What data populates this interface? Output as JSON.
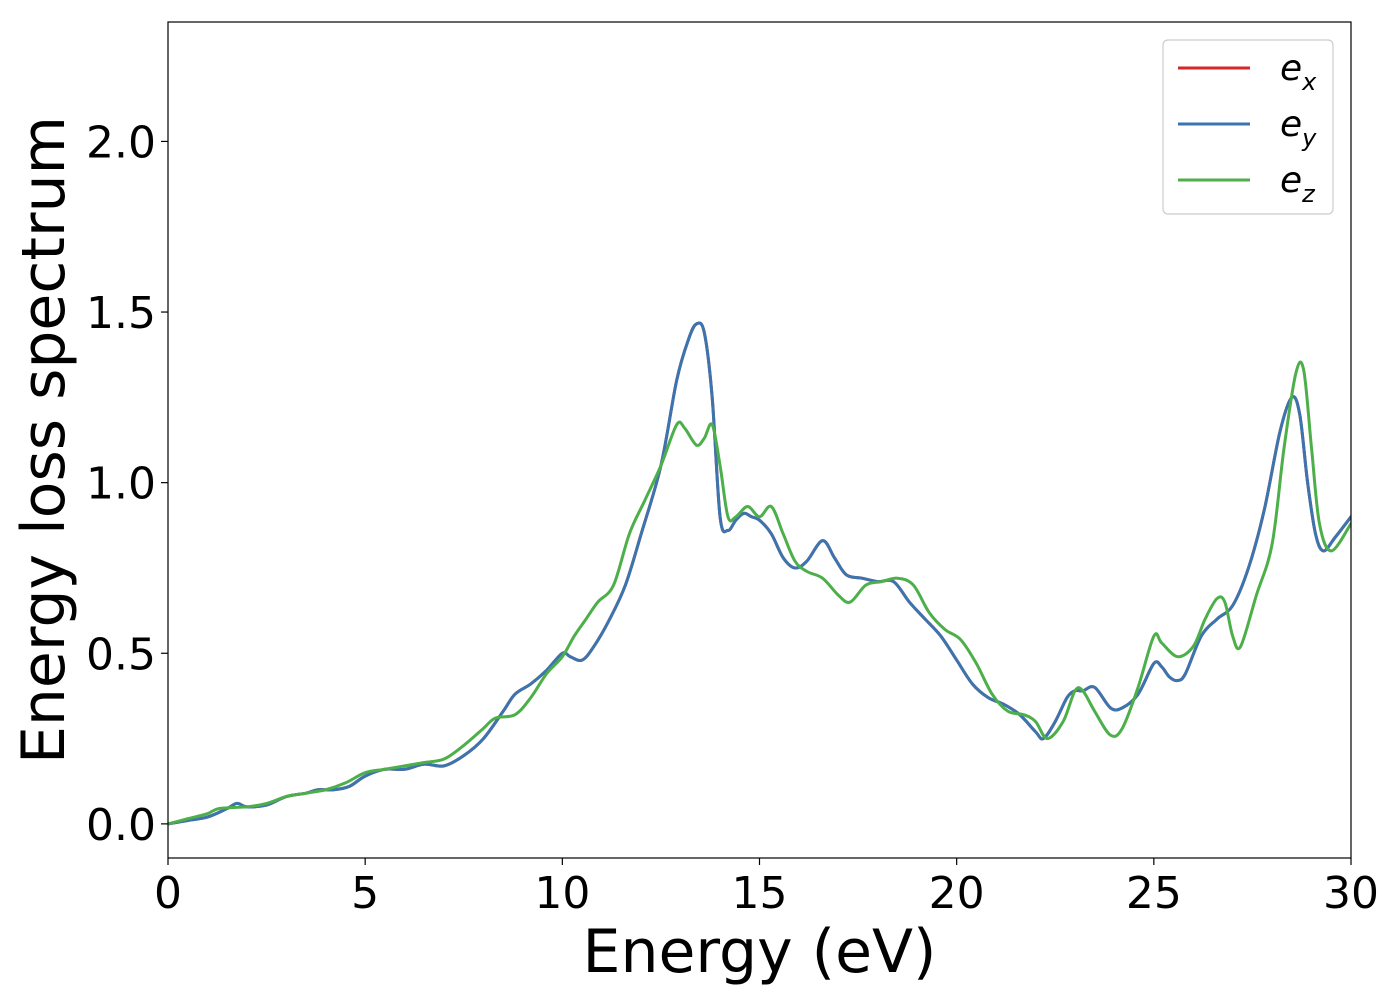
{
  "chart_data": {
    "type": "line",
    "xlabel": "Energy (eV)",
    "ylabel": "Energy loss spectrum",
    "xlim": [
      0,
      30
    ],
    "ylim": [
      -0.1,
      2.35
    ],
    "xticks": [
      0,
      5,
      10,
      15,
      20,
      25,
      30
    ],
    "xtick_labels": [
      "0",
      "5",
      "10",
      "15",
      "20",
      "25",
      "30"
    ],
    "yticks": [
      0.0,
      0.5,
      1.0,
      1.5,
      2.0
    ],
    "ytick_labels": [
      "0.0",
      "0.5",
      "1.0",
      "1.5",
      "2.0"
    ],
    "grid": false,
    "legend_position": "top-right",
    "series": [
      {
        "name": "e_x",
        "legend_base": "e",
        "legend_sub": "x",
        "color": "#d62728",
        "x": [
          0,
          0.5,
          1,
          1.5,
          1.75,
          2,
          2.5,
          3,
          3.5,
          3.8,
          4.2,
          4.6,
          5,
          5.5,
          6,
          6.5,
          7,
          7.5,
          8,
          8.5,
          8.8,
          9.2,
          9.6,
          10,
          10.2,
          10.5,
          10.8,
          11.2,
          11.6,
          12,
          12.5,
          12.9,
          13.2,
          13.4,
          13.6,
          13.8,
          14,
          14.2,
          14.4,
          14.6,
          14.8,
          15,
          15.3,
          15.6,
          15.9,
          16.2,
          16.6,
          16.9,
          17.2,
          17.6,
          18,
          18.4,
          18.8,
          19.2,
          19.6,
          20,
          20.4,
          20.8,
          21.2,
          21.6,
          22,
          22.2,
          22.5,
          22.8,
          23,
          23.2,
          23.5,
          23.9,
          24.2,
          24.6,
          25,
          25.2,
          25.4,
          25.6,
          25.8,
          26.2,
          26.6,
          27,
          27.4,
          27.8,
          28.2,
          28.5,
          28.7,
          28.9,
          29.1,
          29.3,
          29.6,
          30
        ],
        "values": [
          0.0,
          0.01,
          0.02,
          0.045,
          0.06,
          0.05,
          0.055,
          0.08,
          0.09,
          0.1,
          0.1,
          0.11,
          0.14,
          0.16,
          0.16,
          0.175,
          0.17,
          0.2,
          0.25,
          0.33,
          0.38,
          0.41,
          0.45,
          0.5,
          0.49,
          0.48,
          0.52,
          0.6,
          0.7,
          0.85,
          1.05,
          1.3,
          1.42,
          1.465,
          1.44,
          1.25,
          0.9,
          0.86,
          0.89,
          0.91,
          0.9,
          0.89,
          0.85,
          0.78,
          0.75,
          0.77,
          0.83,
          0.78,
          0.73,
          0.72,
          0.71,
          0.71,
          0.65,
          0.6,
          0.55,
          0.48,
          0.41,
          0.37,
          0.35,
          0.32,
          0.27,
          0.25,
          0.3,
          0.37,
          0.39,
          0.39,
          0.4,
          0.34,
          0.34,
          0.38,
          0.47,
          0.46,
          0.43,
          0.42,
          0.44,
          0.55,
          0.6,
          0.64,
          0.75,
          0.92,
          1.15,
          1.25,
          1.2,
          1.0,
          0.85,
          0.8,
          0.84,
          0.9
        ]
      },
      {
        "name": "e_y",
        "legend_base": "e",
        "legend_sub": "y",
        "color": "#3a75b0",
        "x": [
          0,
          0.5,
          1,
          1.5,
          1.75,
          2,
          2.5,
          3,
          3.5,
          3.8,
          4.2,
          4.6,
          5,
          5.5,
          6,
          6.5,
          7,
          7.5,
          8,
          8.5,
          8.8,
          9.2,
          9.6,
          10,
          10.2,
          10.5,
          10.8,
          11.2,
          11.6,
          12,
          12.5,
          12.9,
          13.2,
          13.4,
          13.6,
          13.8,
          14,
          14.2,
          14.4,
          14.6,
          14.8,
          15,
          15.3,
          15.6,
          15.9,
          16.2,
          16.6,
          16.9,
          17.2,
          17.6,
          18,
          18.4,
          18.8,
          19.2,
          19.6,
          20,
          20.4,
          20.8,
          21.2,
          21.6,
          22,
          22.2,
          22.5,
          22.8,
          23,
          23.2,
          23.5,
          23.9,
          24.2,
          24.6,
          25,
          25.2,
          25.4,
          25.6,
          25.8,
          26.2,
          26.6,
          27,
          27.4,
          27.8,
          28.2,
          28.5,
          28.7,
          28.9,
          29.1,
          29.3,
          29.6,
          30
        ],
        "values": [
          0.0,
          0.01,
          0.02,
          0.045,
          0.06,
          0.05,
          0.055,
          0.08,
          0.09,
          0.1,
          0.1,
          0.11,
          0.14,
          0.16,
          0.16,
          0.175,
          0.17,
          0.2,
          0.25,
          0.33,
          0.38,
          0.41,
          0.45,
          0.5,
          0.49,
          0.48,
          0.52,
          0.6,
          0.7,
          0.85,
          1.05,
          1.3,
          1.42,
          1.465,
          1.44,
          1.25,
          0.9,
          0.86,
          0.89,
          0.91,
          0.9,
          0.89,
          0.85,
          0.78,
          0.75,
          0.77,
          0.83,
          0.78,
          0.73,
          0.72,
          0.71,
          0.71,
          0.65,
          0.6,
          0.55,
          0.48,
          0.41,
          0.37,
          0.35,
          0.32,
          0.27,
          0.25,
          0.3,
          0.37,
          0.39,
          0.39,
          0.4,
          0.34,
          0.34,
          0.38,
          0.47,
          0.46,
          0.43,
          0.42,
          0.44,
          0.55,
          0.6,
          0.64,
          0.75,
          0.92,
          1.15,
          1.25,
          1.2,
          1.0,
          0.85,
          0.8,
          0.84,
          0.9
        ]
      },
      {
        "name": "e_z",
        "legend_base": "e",
        "legend_sub": "z",
        "color": "#4daf4a",
        "x": [
          0,
          0.5,
          1,
          1.3,
          2,
          2.5,
          3,
          3.5,
          4,
          4.5,
          5,
          5.5,
          6,
          6.5,
          7,
          7.5,
          8,
          8.3,
          8.8,
          9.2,
          9.6,
          10,
          10.3,
          10.6,
          10.9,
          11.3,
          11.7,
          12.1,
          12.5,
          12.9,
          13.1,
          13.4,
          13.6,
          13.8,
          14,
          14.2,
          14.4,
          14.7,
          15,
          15.3,
          15.6,
          15.9,
          16.2,
          16.6,
          17,
          17.3,
          17.7,
          18.1,
          18.5,
          18.9,
          19.3,
          19.7,
          20.1,
          20.5,
          20.9,
          21.3,
          21.7,
          22,
          22.3,
          22.7,
          23,
          23.2,
          23.5,
          23.9,
          24.2,
          24.6,
          25,
          25.2,
          25.6,
          26,
          26.3,
          26.6,
          26.8,
          27,
          27.2,
          27.6,
          28,
          28.3,
          28.6,
          28.8,
          29,
          29.2,
          29.5,
          30
        ],
        "values": [
          0.0,
          0.015,
          0.03,
          0.045,
          0.05,
          0.06,
          0.08,
          0.09,
          0.1,
          0.12,
          0.15,
          0.16,
          0.17,
          0.18,
          0.19,
          0.23,
          0.28,
          0.31,
          0.32,
          0.37,
          0.44,
          0.49,
          0.55,
          0.6,
          0.65,
          0.7,
          0.85,
          0.95,
          1.05,
          1.17,
          1.16,
          1.11,
          1.13,
          1.17,
          1.05,
          0.9,
          0.9,
          0.93,
          0.9,
          0.93,
          0.85,
          0.77,
          0.74,
          0.72,
          0.67,
          0.65,
          0.7,
          0.71,
          0.72,
          0.7,
          0.62,
          0.57,
          0.54,
          0.47,
          0.38,
          0.33,
          0.32,
          0.3,
          0.25,
          0.3,
          0.39,
          0.39,
          0.33,
          0.26,
          0.28,
          0.4,
          0.55,
          0.53,
          0.49,
          0.52,
          0.6,
          0.66,
          0.65,
          0.55,
          0.52,
          0.67,
          0.82,
          1.1,
          1.32,
          1.33,
          1.1,
          0.88,
          0.8,
          0.88
        ]
      }
    ]
  }
}
